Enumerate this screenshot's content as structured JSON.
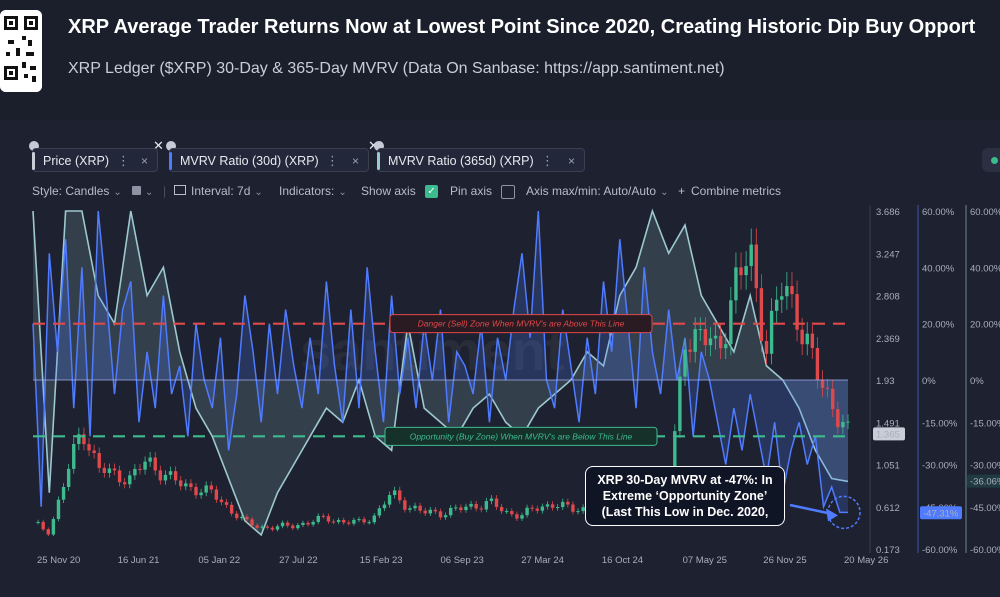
{
  "header": {
    "title": "XRP Average Trader Returns Now at Lowest Point Since 2020, Creating Historic Dip Buy Opport",
    "subtitle": "XRP Ledger ($XRP) 30-Day & 365-Day MVRV (Data On Sanbase: https://app.santiment.net)"
  },
  "metrics": [
    {
      "label": "Price (XRP)",
      "color": "#c9cdd8"
    },
    {
      "label": "MVRV Ratio (30d) (XRP)",
      "color": "#4f7bff"
    },
    {
      "label": "MVRV Ratio (365d) (XRP)",
      "color": "#9cc9cf"
    }
  ],
  "toolbar": {
    "style": "Style: Candles",
    "interval": "Interval: 7d",
    "indicators": "Indicators:",
    "show_axis": "Show axis",
    "pin_axis": "Pin axis",
    "axis_maxmin": "Axis max/min: Auto/Auto",
    "combine": "Combine metrics"
  },
  "watermark": "santiment",
  "annotations": {
    "danger": "Danger (Sell) Zone When MVRV's are Above This Line",
    "opportunity": "Opportunity (Buy Zone) When MVRV's are Below This Line",
    "callout_1": "XRP 30-Day MVRV at -47%: In",
    "callout_2": "Extreme ‘Opportunity Zone’",
    "callout_3": "(Last This Low in Dec. 2020,"
  },
  "colors": {
    "danger": "#e0494b",
    "opportunity": "#3dbb8e",
    "mvrv30": "#4f7bff",
    "mvrv365": "#9cc9cf",
    "candle_up": "#3dbb8e",
    "candle_down": "#e0494b"
  },
  "chart_data": {
    "type": "line",
    "x_ticks": [
      "25 Nov 20",
      "16 Jun 21",
      "05 Jan 22",
      "27 Jul 22",
      "15 Feb 23",
      "06 Sep 23",
      "27 Mar 24",
      "16 Oct 24",
      "07 May 25",
      "26 Nov 25",
      "20 May 26"
    ],
    "price_axis": {
      "ticks": [
        "3.686",
        "3.247",
        "2.808",
        "2.369",
        "1.93",
        "1.491",
        "1.051",
        "0.612",
        "0.173"
      ],
      "current": "1.365"
    },
    "mvrv30_axis": {
      "ticks": [
        "60.00%",
        "40.00%",
        "20.00%",
        "0%",
        "-15.00%",
        "-30.00%",
        "-45.00%",
        "-60.00%"
      ],
      "current": "-47.31%"
    },
    "mvrv365_axis": {
      "ticks": [
        "60.00%",
        "40.00%",
        "20.00%",
        "0%",
        "-15.00%",
        "-30.00%",
        "-45.00%",
        "-60.00%"
      ],
      "current": "-36.06%"
    },
    "danger_line_pct": 20,
    "opportunity_line_pct": -20,
    "series": [
      {
        "name": "Price (XRP)",
        "x": [
          0,
          0.02,
          0.04,
          0.06,
          0.08,
          0.1,
          0.12,
          0.14,
          0.16,
          0.18,
          0.2,
          0.22,
          0.24,
          0.26,
          0.28,
          0.3,
          0.32,
          0.34,
          0.36,
          0.38,
          0.4,
          0.42,
          0.44,
          0.46,
          0.48,
          0.5,
          0.52,
          0.54,
          0.56,
          0.58,
          0.6,
          0.62,
          0.64,
          0.66,
          0.68,
          0.7,
          0.72,
          0.74,
          0.76,
          0.78,
          0.8,
          0.82,
          0.84,
          0.86,
          0.88,
          0.9,
          0.92,
          0.94,
          0.96,
          0.98,
          1.0
        ],
        "values": [
          0.45,
          0.35,
          0.9,
          1.45,
          1.0,
          0.95,
          0.9,
          1.1,
          0.95,
          0.85,
          0.8,
          0.75,
          0.6,
          0.45,
          0.4,
          0.4,
          0.42,
          0.45,
          0.5,
          0.45,
          0.45,
          0.52,
          0.75,
          0.62,
          0.55,
          0.55,
          0.58,
          0.62,
          0.66,
          0.55,
          0.53,
          0.6,
          0.65,
          0.58,
          0.6,
          0.75,
          0.6,
          0.55,
          0.6,
          0.65,
          2.4,
          2.4,
          2.2,
          2.9,
          3.2,
          2.3,
          2.9,
          2.6,
          2.0,
          1.7,
          1.37
        ]
      },
      {
        "name": "MVRV Ratio (30d) (XRP)",
        "x": [
          0,
          0.01,
          0.02,
          0.03,
          0.04,
          0.05,
          0.06,
          0.07,
          0.08,
          0.09,
          0.1,
          0.11,
          0.12,
          0.13,
          0.14,
          0.15,
          0.16,
          0.17,
          0.18,
          0.19,
          0.2,
          0.21,
          0.22,
          0.23,
          0.24,
          0.25,
          0.26,
          0.27,
          0.28,
          0.29,
          0.3,
          0.31,
          0.32,
          0.33,
          0.34,
          0.35,
          0.36,
          0.37,
          0.38,
          0.39,
          0.4,
          0.41,
          0.42,
          0.43,
          0.44,
          0.45,
          0.46,
          0.47,
          0.48,
          0.49,
          0.5,
          0.51,
          0.52,
          0.53,
          0.54,
          0.55,
          0.56,
          0.57,
          0.58,
          0.59,
          0.6,
          0.61,
          0.62,
          0.63,
          0.64,
          0.65,
          0.66,
          0.67,
          0.68,
          0.69,
          0.7,
          0.71,
          0.72,
          0.73,
          0.74,
          0.75,
          0.76,
          0.77,
          0.78,
          0.79,
          0.8,
          0.81,
          0.82,
          0.83,
          0.84,
          0.85,
          0.86,
          0.87,
          0.88,
          0.89,
          0.9,
          0.91,
          0.92,
          0.93,
          0.94,
          0.95,
          0.96,
          0.97,
          0.98,
          0.99,
          1.0
        ],
        "values": [
          20,
          -45,
          45,
          10,
          50,
          -10,
          40,
          -20,
          60,
          30,
          -5,
          25,
          35,
          -15,
          10,
          -10,
          30,
          -5,
          5,
          -20,
          20,
          0,
          -10,
          15,
          -25,
          -5,
          30,
          10,
          -15,
          20,
          -5,
          25,
          5,
          -10,
          15,
          -5,
          35,
          5,
          -15,
          25,
          -10,
          40,
          10,
          -15,
          30,
          -5,
          15,
          -10,
          20,
          0,
          25,
          -15,
          10,
          5,
          -5,
          20,
          -15,
          15,
          0,
          25,
          45,
          15,
          60,
          0,
          -10,
          25,
          5,
          -15,
          15,
          -5,
          35,
          10,
          50,
          20,
          -10,
          40,
          10,
          -5,
          25,
          0,
          15,
          -20,
          10,
          0,
          -15,
          -30,
          -10,
          -25,
          -5,
          -20,
          -35,
          -15,
          -40,
          -25,
          -15,
          -30,
          -20,
          -45,
          -38,
          -47,
          -47
        ]
      },
      {
        "name": "MVRV Ratio (365d) (XRP)",
        "x": [
          0,
          0.02,
          0.04,
          0.06,
          0.08,
          0.1,
          0.12,
          0.14,
          0.16,
          0.18,
          0.2,
          0.22,
          0.24,
          0.26,
          0.28,
          0.3,
          0.32,
          0.34,
          0.36,
          0.38,
          0.4,
          0.42,
          0.44,
          0.46,
          0.48,
          0.5,
          0.52,
          0.54,
          0.56,
          0.58,
          0.6,
          0.62,
          0.64,
          0.66,
          0.68,
          0.7,
          0.72,
          0.74,
          0.76,
          0.78,
          0.8,
          0.82,
          0.84,
          0.86,
          0.88,
          0.9,
          0.92,
          0.94,
          0.96,
          0.98,
          1.0
        ],
        "values": [
          60,
          -40,
          60,
          60,
          30,
          20,
          60,
          30,
          40,
          10,
          -10,
          -20,
          -35,
          -50,
          -55,
          -40,
          -30,
          -20,
          -10,
          -15,
          0,
          -20,
          -25,
          20,
          -10,
          -15,
          -20,
          -10,
          -5,
          -15,
          -20,
          -10,
          -5,
          0,
          10,
          5,
          30,
          40,
          60,
          45,
          55,
          30,
          20,
          10,
          30,
          5,
          0,
          -10,
          -25,
          -35,
          -36
        ]
      }
    ]
  }
}
